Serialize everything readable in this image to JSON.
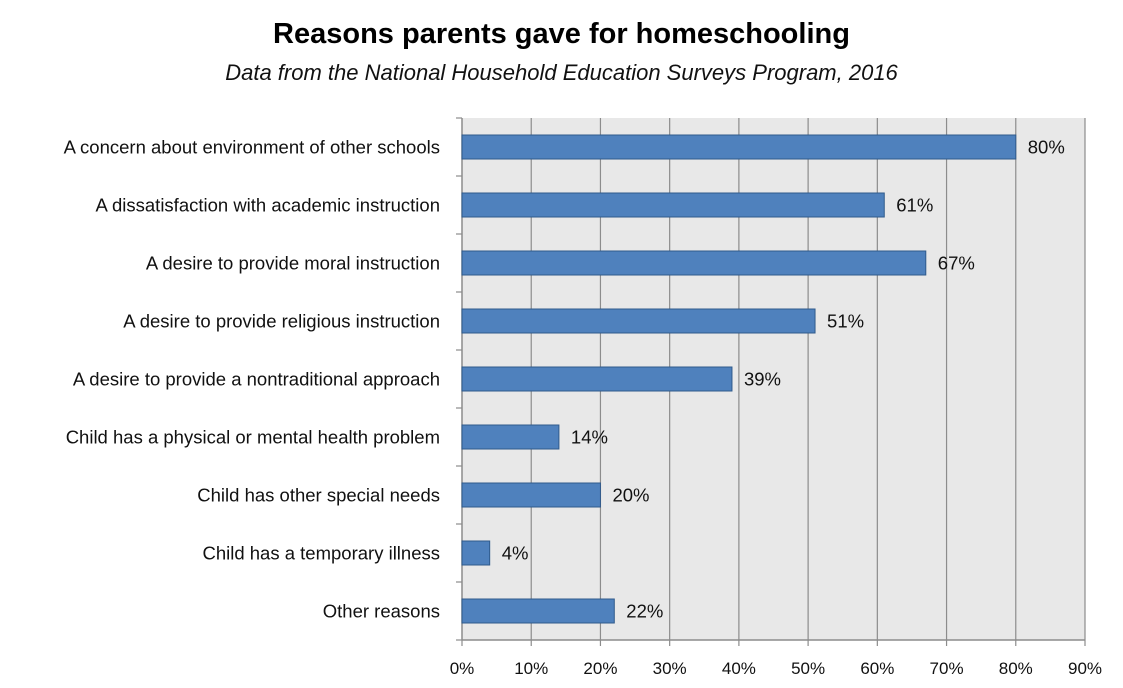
{
  "chart_data": {
    "type": "bar",
    "orientation": "horizontal",
    "title": "Reasons parents gave for homeschooling",
    "subtitle": "Data from the National Household Education Surveys Program, 2016",
    "categories": [
      "A concern about environment of other schools",
      "A dissatisfaction with academic instruction",
      "A desire to provide moral instruction",
      "A desire to provide religious instruction",
      "A desire to provide a nontraditional approach",
      "Child has a physical or mental health problem",
      "Child has other special needs",
      "Child has a temporary illness",
      "Other reasons"
    ],
    "values": [
      80,
      61,
      67,
      51,
      39,
      14,
      20,
      4,
      22
    ],
    "value_labels": [
      "80%",
      "61%",
      "67%",
      "51%",
      "39%",
      "14%",
      "20%",
      "4%",
      "22%"
    ],
    "xlim": [
      0,
      90
    ],
    "xticks": [
      0,
      10,
      20,
      30,
      40,
      50,
      60,
      70,
      80,
      90
    ],
    "xtick_labels": [
      "0%",
      "10%",
      "20%",
      "30%",
      "40%",
      "50%",
      "60%",
      "70%",
      "80%",
      "90%"
    ],
    "xlabel": "",
    "ylabel": "",
    "grid": true,
    "legend": "none",
    "colors": {
      "bar_fill": "#4f81bd",
      "bar_stroke": "#2f5a8c",
      "plot_background": "#e8e8e8",
      "gridline": "#8c8c8c",
      "axis": "#8c8c8c"
    }
  }
}
